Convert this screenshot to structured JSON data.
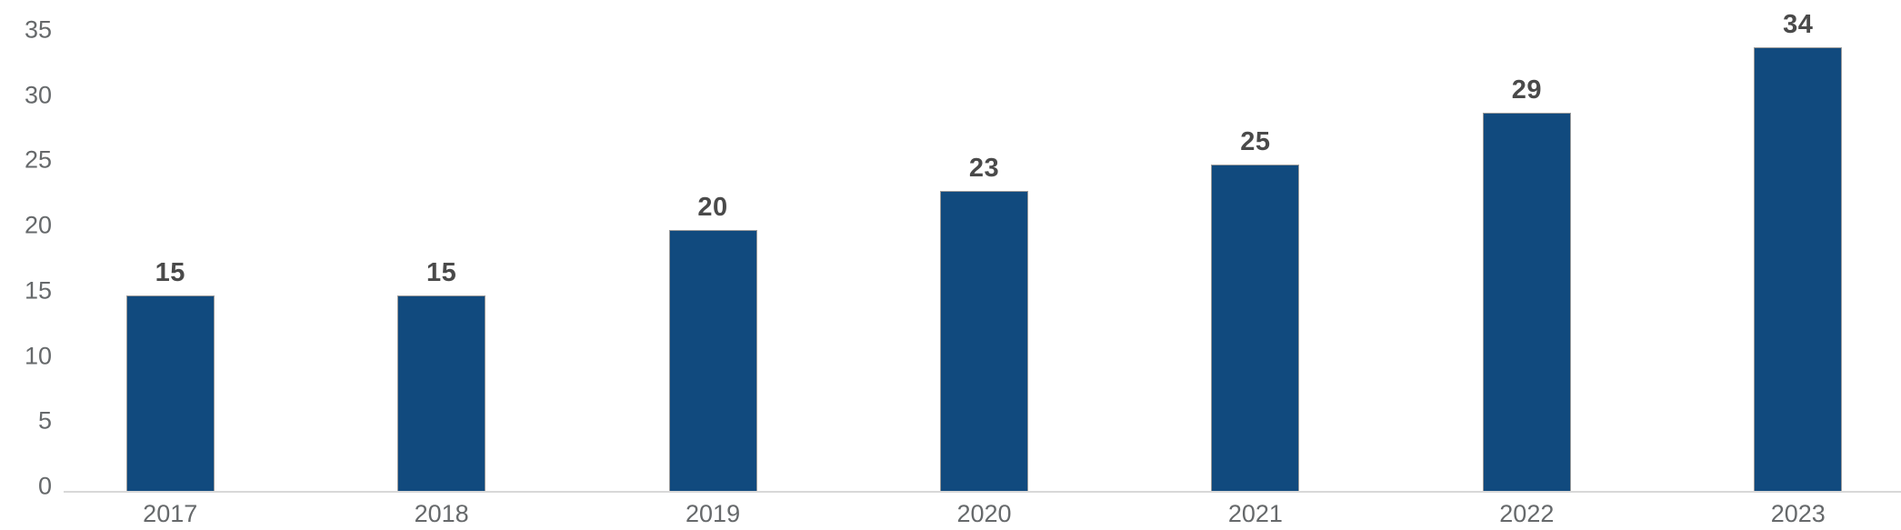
{
  "chart_data": {
    "type": "bar",
    "title": "",
    "xlabel": "",
    "ylabel": "",
    "categories": [
      "2017",
      "2018",
      "2019",
      "2020",
      "2021",
      "2022",
      "2023"
    ],
    "values": [
      15,
      15,
      20,
      23,
      25,
      29,
      34
    ],
    "data_labels": [
      "15",
      "15",
      "20",
      "23",
      "25",
      "29",
      "34"
    ],
    "yticks": [
      0,
      5,
      10,
      15,
      20,
      25,
      30,
      35
    ],
    "ylim": [
      0,
      35
    ],
    "grid": false,
    "legend": "none",
    "colors": {
      "bar_fill": "#114A7E",
      "bar_border": "#9B9B9B",
      "axis_line": "#D8D8D8",
      "tick_label": "#66696B",
      "category_label": "#66696B",
      "data_label": "#4A4A4A",
      "background": "#FFFFFF"
    }
  }
}
